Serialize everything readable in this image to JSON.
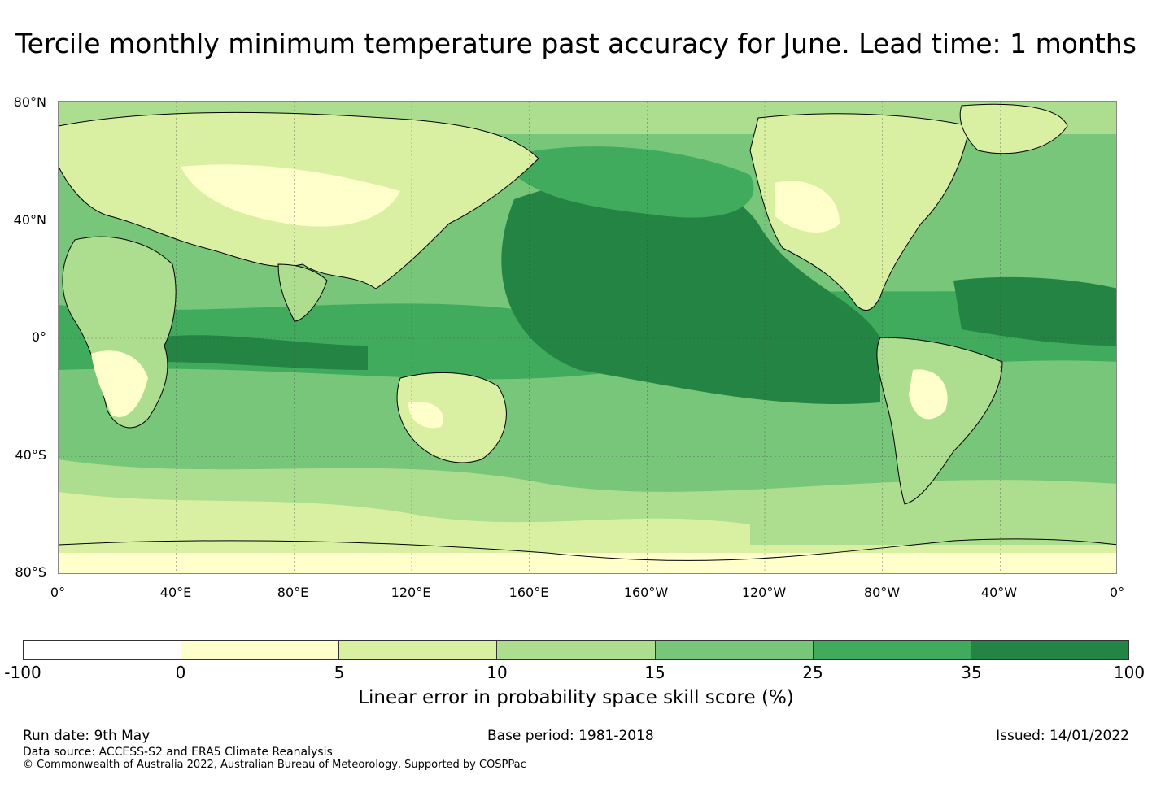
{
  "title": "Tercile monthly minimum temperature past accuracy for June. Lead time: 1 months",
  "map": {
    "lat_labels": [
      "80°N",
      "40°N",
      "0°",
      "40°S",
      "80°S"
    ],
    "lon_labels": [
      "0°",
      "40°E",
      "80°E",
      "120°E",
      "160°E",
      "160°W",
      "120°W",
      "80°W",
      "40°W",
      "0°"
    ],
    "colors": {
      "ocean_tropics": "#238443",
      "ocean_high": "#41ab5d",
      "mid": "#78c679",
      "light": "#addd8e",
      "pale": "#d9f0a3",
      "lowest": "#ffffcc"
    }
  },
  "colorbar": {
    "ticks": [
      "-100",
      "0",
      "5",
      "10",
      "15",
      "25",
      "35",
      "100"
    ],
    "colors": [
      "#ffffff",
      "#ffffcc",
      "#d9f0a3",
      "#addd8e",
      "#78c679",
      "#41ab5d",
      "#238443"
    ],
    "label": "Linear error in probability space skill score (%)"
  },
  "footer": {
    "run_date": "Run date: 9th May",
    "base_period": "Base period: 1981-2018",
    "issued": "Issued: 14/01/2022",
    "data_source": "Data source: ACCESS-S2 and ERA5 Climate Reanalysis",
    "copyright": "© Commonwealth of Australia 2022, Australian Bureau of Meteorology, Supported by COSPPac"
  }
}
